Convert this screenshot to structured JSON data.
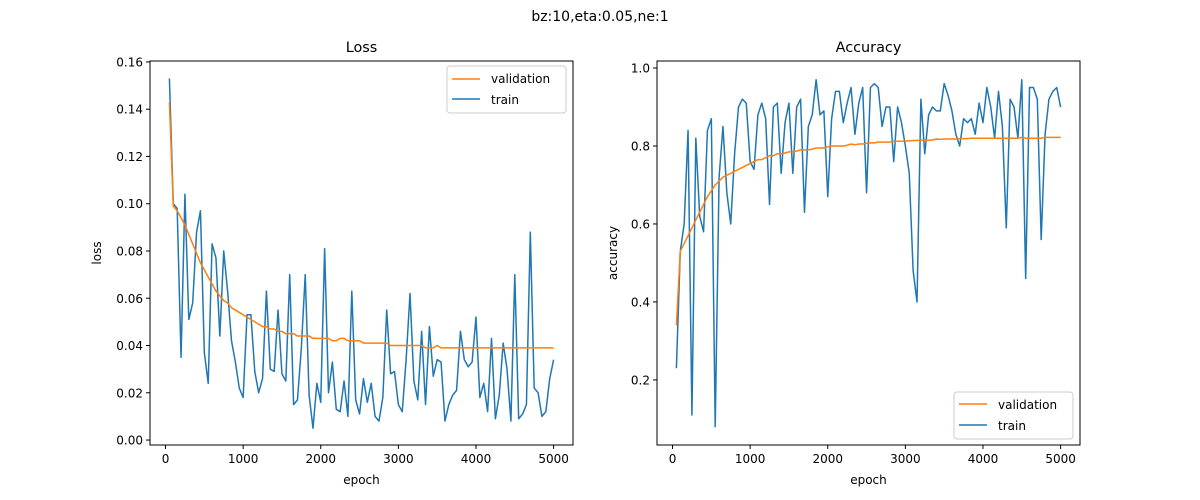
{
  "figure": {
    "suptitle": "bz:10,eta:0.05,ne:1"
  },
  "colors": {
    "validation": "#ff7f0e",
    "train": "#1f77b4"
  },
  "chart_data": [
    {
      "type": "line",
      "title": "Loss",
      "xlabel": "epoch",
      "ylabel": "loss",
      "xlim": [
        -200,
        5250
      ],
      "ylim": [
        -0.0021,
        0.1604
      ],
      "xticks": [
        0,
        1000,
        2000,
        3000,
        4000,
        5000
      ],
      "xtick_labels": [
        "0",
        "1000",
        "2000",
        "3000",
        "4000",
        "5000"
      ],
      "yticks": [
        0.0,
        0.02,
        0.04,
        0.06,
        0.08,
        0.1,
        0.12,
        0.14,
        0.16
      ],
      "ytick_labels": [
        "0.00",
        "0.02",
        "0.04",
        "0.06",
        "0.08",
        "0.10",
        "0.12",
        "0.14",
        "0.16"
      ],
      "legend": {
        "location": "top-right",
        "entries": [
          "validation",
          "train"
        ]
      },
      "grid": false,
      "x_start": 50,
      "x_step": 50,
      "series": [
        {
          "name": "validation",
          "values": [
            0.143,
            0.099,
            0.097,
            0.094,
            0.091,
            0.087,
            0.083,
            0.079,
            0.075,
            0.072,
            0.069,
            0.066,
            0.063,
            0.061,
            0.059,
            0.058,
            0.056,
            0.055,
            0.054,
            0.053,
            0.052,
            0.051,
            0.05,
            0.049,
            0.048,
            0.048,
            0.047,
            0.047,
            0.046,
            0.046,
            0.045,
            0.045,
            0.045,
            0.044,
            0.044,
            0.044,
            0.044,
            0.043,
            0.043,
            0.043,
            0.043,
            0.043,
            0.042,
            0.042,
            0.043,
            0.043,
            0.042,
            0.042,
            0.042,
            0.042,
            0.041,
            0.041,
            0.041,
            0.041,
            0.041,
            0.041,
            0.041,
            0.04,
            0.04,
            0.04,
            0.04,
            0.04,
            0.04,
            0.04,
            0.04,
            0.04,
            0.039,
            0.039,
            0.039,
            0.04,
            0.039,
            0.039,
            0.039,
            0.039,
            0.039,
            0.039,
            0.039,
            0.039,
            0.039,
            0.039,
            0.039,
            0.039,
            0.039,
            0.039,
            0.039,
            0.039,
            0.039,
            0.039,
            0.039,
            0.039,
            0.039,
            0.039,
            0.039,
            0.039,
            0.039,
            0.039,
            0.039,
            0.039,
            0.039,
            0.039
          ]
        },
        {
          "name": "train",
          "values": [
            0.153,
            0.1,
            0.098,
            0.035,
            0.104,
            0.051,
            0.058,
            0.088,
            0.097,
            0.037,
            0.024,
            0.083,
            0.077,
            0.044,
            0.08,
            0.063,
            0.042,
            0.033,
            0.022,
            0.018,
            0.053,
            0.053,
            0.029,
            0.02,
            0.026,
            0.063,
            0.03,
            0.029,
            0.055,
            0.028,
            0.025,
            0.07,
            0.015,
            0.017,
            0.039,
            0.07,
            0.019,
            0.005,
            0.024,
            0.016,
            0.081,
            0.02,
            0.033,
            0.013,
            0.012,
            0.025,
            0.01,
            0.063,
            0.017,
            0.011,
            0.026,
            0.016,
            0.024,
            0.01,
            0.008,
            0.018,
            0.055,
            0.028,
            0.029,
            0.015,
            0.012,
            0.034,
            0.062,
            0.025,
            0.017,
            0.046,
            0.015,
            0.048,
            0.027,
            0.034,
            0.033,
            0.008,
            0.015,
            0.019,
            0.021,
            0.046,
            0.034,
            0.031,
            0.033,
            0.052,
            0.018,
            0.024,
            0.012,
            0.043,
            0.009,
            0.019,
            0.041,
            0.03,
            0.008,
            0.07,
            0.009,
            0.011,
            0.015,
            0.088,
            0.022,
            0.02,
            0.01,
            0.012,
            0.026,
            0.034
          ]
        }
      ]
    },
    {
      "type": "line",
      "title": "Accuracy",
      "xlabel": "epoch",
      "ylabel": "accuracy",
      "xlim": [
        -200,
        5250
      ],
      "ylim": [
        0.033,
        1.018
      ],
      "xticks": [
        0,
        1000,
        2000,
        3000,
        4000,
        5000
      ],
      "xtick_labels": [
        "0",
        "1000",
        "2000",
        "3000",
        "4000",
        "5000"
      ],
      "yticks": [
        0.2,
        0.4,
        0.6,
        0.8,
        1.0
      ],
      "ytick_labels": [
        "0.2",
        "0.4",
        "0.6",
        "0.8",
        "1.0"
      ],
      "legend": {
        "location": "bottom-right",
        "entries": [
          "validation",
          "train"
        ]
      },
      "grid": false,
      "x_start": 50,
      "x_step": 50,
      "series": [
        {
          "name": "validation",
          "values": [
            0.34,
            0.53,
            0.55,
            0.57,
            0.59,
            0.61,
            0.63,
            0.65,
            0.67,
            0.685,
            0.7,
            0.71,
            0.72,
            0.725,
            0.73,
            0.735,
            0.74,
            0.745,
            0.75,
            0.755,
            0.76,
            0.765,
            0.765,
            0.77,
            0.775,
            0.775,
            0.78,
            0.78,
            0.782,
            0.785,
            0.785,
            0.787,
            0.79,
            0.79,
            0.79,
            0.792,
            0.795,
            0.795,
            0.795,
            0.798,
            0.8,
            0.8,
            0.8,
            0.8,
            0.802,
            0.805,
            0.803,
            0.805,
            0.805,
            0.807,
            0.808,
            0.808,
            0.81,
            0.81,
            0.81,
            0.81,
            0.812,
            0.812,
            0.812,
            0.813,
            0.813,
            0.814,
            0.814,
            0.815,
            0.815,
            0.815,
            0.815,
            0.818,
            0.817,
            0.818,
            0.818,
            0.818,
            0.818,
            0.819,
            0.819,
            0.819,
            0.82,
            0.82,
            0.82,
            0.82,
            0.82,
            0.82,
            0.82,
            0.82,
            0.82,
            0.82,
            0.82,
            0.82,
            0.82,
            0.822,
            0.82,
            0.82,
            0.82,
            0.82,
            0.82,
            0.822,
            0.822,
            0.822,
            0.822,
            0.822
          ]
        },
        {
          "name": "train",
          "values": [
            0.23,
            0.53,
            0.6,
            0.84,
            0.11,
            0.82,
            0.62,
            0.58,
            0.84,
            0.87,
            0.08,
            0.72,
            0.85,
            0.68,
            0.6,
            0.78,
            0.9,
            0.92,
            0.91,
            0.76,
            0.74,
            0.88,
            0.91,
            0.87,
            0.65,
            0.9,
            0.91,
            0.73,
            0.86,
            0.91,
            0.73,
            0.9,
            0.92,
            0.63,
            0.85,
            0.88,
            0.97,
            0.88,
            0.89,
            0.67,
            0.87,
            0.94,
            0.94,
            0.86,
            0.91,
            0.95,
            0.83,
            0.91,
            0.95,
            0.68,
            0.95,
            0.96,
            0.95,
            0.85,
            0.9,
            0.9,
            0.76,
            0.9,
            0.86,
            0.8,
            0.73,
            0.48,
            0.4,
            0.92,
            0.78,
            0.88,
            0.9,
            0.89,
            0.89,
            0.96,
            0.93,
            0.89,
            0.83,
            0.8,
            0.87,
            0.86,
            0.87,
            0.83,
            0.91,
            0.86,
            0.95,
            0.9,
            0.82,
            0.94,
            0.85,
            0.59,
            0.92,
            0.9,
            0.82,
            0.97,
            0.46,
            0.95,
            0.95,
            0.92,
            0.56,
            0.83,
            0.92,
            0.94,
            0.95,
            0.9
          ]
        }
      ]
    }
  ]
}
